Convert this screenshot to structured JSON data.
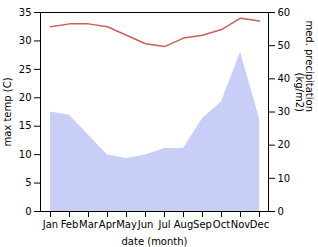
{
  "chart_data": {
    "type": "line",
    "xlabel": "date (month)",
    "ylabel": "max temp (C)",
    "y2label": "med. precipitation\n(kg/m2)",
    "categories": [
      "Jan",
      "Feb",
      "Mar",
      "Apr",
      "May",
      "Jun",
      "Jul",
      "Aug",
      "Sep",
      "Oct",
      "Nov",
      "Dec"
    ],
    "ylim": [
      0,
      35
    ],
    "yticks": [
      0,
      5,
      10,
      15,
      20,
      25,
      30,
      35
    ],
    "y2lim": [
      0,
      60
    ],
    "y2ticks": [
      0,
      10,
      20,
      30,
      40,
      50,
      60
    ],
    "series": [
      {
        "type": "area",
        "axis": "y2",
        "color": "#c8cef5",
        "values": [
          30,
          29,
          23,
          17,
          16,
          17,
          19,
          19,
          28,
          33,
          48,
          28
        ]
      },
      {
        "type": "line",
        "color": "#cd5c5c",
        "values": [
          32.5,
          33.0,
          33.0,
          32.5,
          31.0,
          29.5,
          29.0,
          30.5,
          31.0,
          32.0,
          34.0,
          33.5
        ]
      }
    ]
  }
}
